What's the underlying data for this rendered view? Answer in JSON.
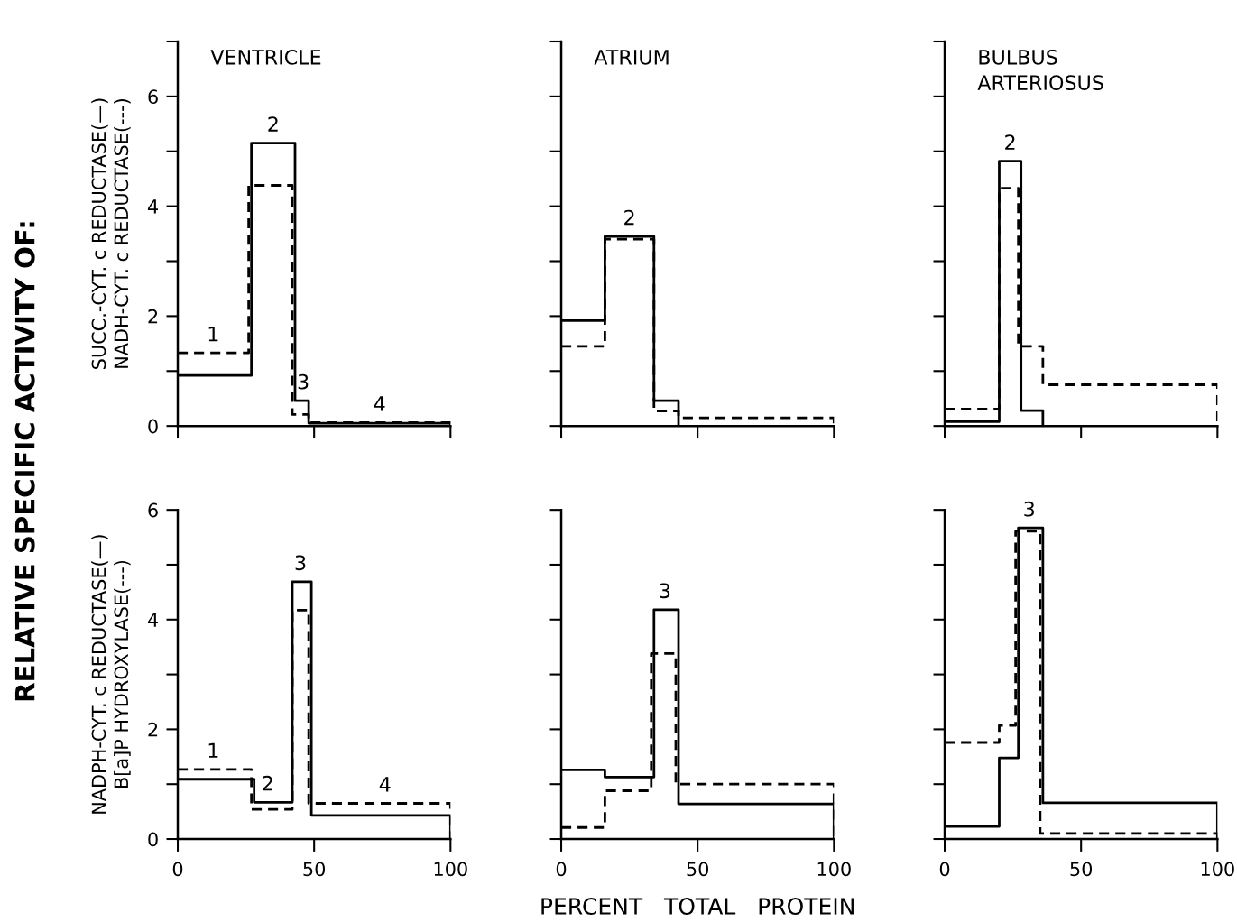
{
  "chart_data": [
    {
      "type": "step",
      "title": "VENTRICLE",
      "ylabel": "SUCC.-CYT. c REDUCTASE(—)\nNADH-CYT. c REDUCTASE(---)",
      "annotations": [
        "RELATIVE SPECIFIC ACTIVITY OF:",
        {
          "text": "1",
          "x": 13,
          "y": 1.33
        },
        {
          "text": "2",
          "x": 35,
          "y": 5.15
        },
        {
          "text": "3",
          "x": 46,
          "y": 0.46
        },
        {
          "text": "4",
          "x": 74,
          "y": 0.06
        }
      ],
      "xlim": [
        0,
        100
      ],
      "xticks": [
        {
          "value": 0,
          "label": null
        },
        {
          "value": 50,
          "label": null
        },
        {
          "value": 100,
          "label": null
        }
      ],
      "ylim": [
        0,
        7
      ],
      "yticks": [
        0,
        {
          "value": 1,
          "label": null
        },
        2,
        {
          "value": 3,
          "label": null
        },
        4,
        {
          "value": 5,
          "label": null
        },
        6,
        {
          "value": 7,
          "label": null
        }
      ],
      "tick_labels": "y",
      "series": [
        {
          "color": "#000000",
          "line_style": "solid",
          "x": [
            0,
            27,
            43,
            48,
            100
          ],
          "values": [
            0.92,
            5.15,
            0.46,
            0.05,
            0
          ]
        },
        {
          "color": "#000000",
          "line_style": "dashed",
          "x": [
            0,
            26,
            42,
            48,
            100
          ],
          "values": [
            1.33,
            4.38,
            0.21,
            0.06,
            0
          ]
        }
      ]
    },
    {
      "type": "step",
      "title": "ATRIUM",
      "annotations": [
        {
          "text": "2",
          "x": 25,
          "y": 3.45
        }
      ],
      "xlim": [
        0,
        100
      ],
      "xticks": [
        {
          "value": 0,
          "label": null
        },
        {
          "value": 50,
          "label": null
        },
        {
          "value": 100,
          "label": null
        }
      ],
      "ylim": [
        0,
        7
      ],
      "yticks": [
        {
          "value": 0,
          "label": null
        },
        {
          "value": 1,
          "label": null
        },
        {
          "value": 2,
          "label": null
        },
        {
          "value": 3,
          "label": null
        },
        {
          "value": 4,
          "label": null
        },
        {
          "value": 5,
          "label": null
        },
        {
          "value": 6,
          "label": null
        },
        {
          "value": 7,
          "label": null
        }
      ],
      "tick_labels": false,
      "series": [
        {
          "color": "#000000",
          "line_style": "solid",
          "x": [
            0,
            16,
            34,
            43
          ],
          "values": [
            1.92,
            3.45,
            0.46,
            0
          ]
        },
        {
          "color": "#000000",
          "line_style": "dashed",
          "x": [
            0,
            16,
            34,
            43,
            100
          ],
          "values": [
            1.45,
            3.4,
            0.27,
            0.15,
            0
          ]
        }
      ]
    },
    {
      "type": "step",
      "title": "BULBUS\nARTERIOSUS",
      "annotations": [
        {
          "text": "2",
          "x": 24,
          "y": 4.82
        }
      ],
      "xlim": [
        0,
        100
      ],
      "xticks": [
        {
          "value": 0,
          "label": null
        },
        {
          "value": 50,
          "label": null
        },
        {
          "value": 100,
          "label": null
        }
      ],
      "ylim": [
        0,
        7
      ],
      "yticks": [
        {
          "value": 0,
          "label": null
        },
        {
          "value": 1,
          "label": null
        },
        {
          "value": 2,
          "label": null
        },
        {
          "value": 3,
          "label": null
        },
        {
          "value": 4,
          "label": null
        },
        {
          "value": 5,
          "label": null
        },
        {
          "value": 6,
          "label": null
        },
        {
          "value": 7,
          "label": null
        }
      ],
      "tick_labels": false,
      "series": [
        {
          "color": "#000000",
          "line_style": "solid",
          "x": [
            0,
            20,
            28,
            36
          ],
          "values": [
            0.08,
            4.82,
            0.28,
            0
          ]
        },
        {
          "color": "#000000",
          "line_style": "dashed",
          "x": [
            0,
            20,
            27,
            36,
            100
          ],
          "values": [
            0.31,
            4.33,
            1.45,
            0.75,
            0
          ]
        }
      ]
    },
    {
      "type": "step",
      "ylabel": "NADPH-CYT. c REDUCTASE(—)\nB[a]P HYDROXYLASE(---)",
      "annotations": [
        {
          "text": "1",
          "x": 13,
          "y": 1.27
        },
        {
          "text": "2",
          "x": 33,
          "y": 0.67
        },
        {
          "text": "3",
          "x": 45,
          "y": 4.69
        },
        {
          "text": "4",
          "x": 76,
          "y": 0.65
        }
      ],
      "xlim": [
        0,
        100
      ],
      "xticks": [
        0,
        50,
        100
      ],
      "ylim": [
        0,
        6
      ],
      "yticks": [
        0,
        {
          "value": 1,
          "label": null
        },
        2,
        {
          "value": 3,
          "label": null
        },
        4,
        {
          "value": 5,
          "label": null
        },
        6
      ],
      "series": [
        {
          "color": "#000000",
          "line_style": "solid",
          "x": [
            0,
            28,
            42,
            49,
            100
          ],
          "values": [
            1.09,
            0.67,
            4.69,
            0.43,
            0
          ]
        },
        {
          "color": "#000000",
          "line_style": "dashed",
          "x": [
            0,
            27,
            42,
            48,
            100
          ],
          "values": [
            1.27,
            0.54,
            4.17,
            0.65,
            0
          ]
        }
      ]
    },
    {
      "type": "step",
      "xlabel": "PERCENT   TOTAL   PROTEIN",
      "annotations": [
        {
          "text": "3",
          "x": 38,
          "y": 4.18
        }
      ],
      "xlim": [
        0,
        100
      ],
      "xticks": [
        0,
        50,
        100
      ],
      "ylim": [
        0,
        6
      ],
      "yticks": [
        {
          "value": 0,
          "label": null
        },
        {
          "value": 1,
          "label": null
        },
        {
          "value": 2,
          "label": null
        },
        {
          "value": 3,
          "label": null
        },
        {
          "value": 4,
          "label": null
        },
        {
          "value": 5,
          "label": null
        },
        {
          "value": 6,
          "label": null
        }
      ],
      "tick_labels": "x",
      "series": [
        {
          "color": "#000000",
          "line_style": "solid",
          "x": [
            0,
            16,
            34,
            43,
            100
          ],
          "values": [
            1.26,
            1.13,
            4.18,
            0.64,
            0
          ]
        },
        {
          "color": "#000000",
          "line_style": "dashed",
          "x": [
            0,
            16,
            33,
            42,
            100
          ],
          "values": [
            0.21,
            0.88,
            3.38,
            1.0,
            0
          ]
        }
      ]
    },
    {
      "type": "step",
      "annotations": [
        {
          "text": "3",
          "x": 31,
          "y": 5.67
        }
      ],
      "xlim": [
        0,
        100
      ],
      "xticks": [
        0,
        50,
        100
      ],
      "ylim": [
        0,
        6
      ],
      "yticks": [
        {
          "value": 0,
          "label": null
        },
        {
          "value": 1,
          "label": null
        },
        {
          "value": 2,
          "label": null
        },
        {
          "value": 3,
          "label": null
        },
        {
          "value": 4,
          "label": null
        },
        {
          "value": 5,
          "label": null
        },
        {
          "value": 6,
          "label": null
        }
      ],
      "tick_labels": "x",
      "series": [
        {
          "color": "#000000",
          "line_style": "solid",
          "x": [
            0,
            20,
            27,
            36,
            100
          ],
          "values": [
            0.23,
            1.48,
            5.67,
            0.66,
            0
          ]
        },
        {
          "color": "#000000",
          "line_style": "dashed",
          "x": [
            0,
            20,
            26,
            35,
            100
          ],
          "values": [
            1.76,
            2.07,
            5.61,
            0.1,
            0
          ]
        }
      ]
    }
  ]
}
